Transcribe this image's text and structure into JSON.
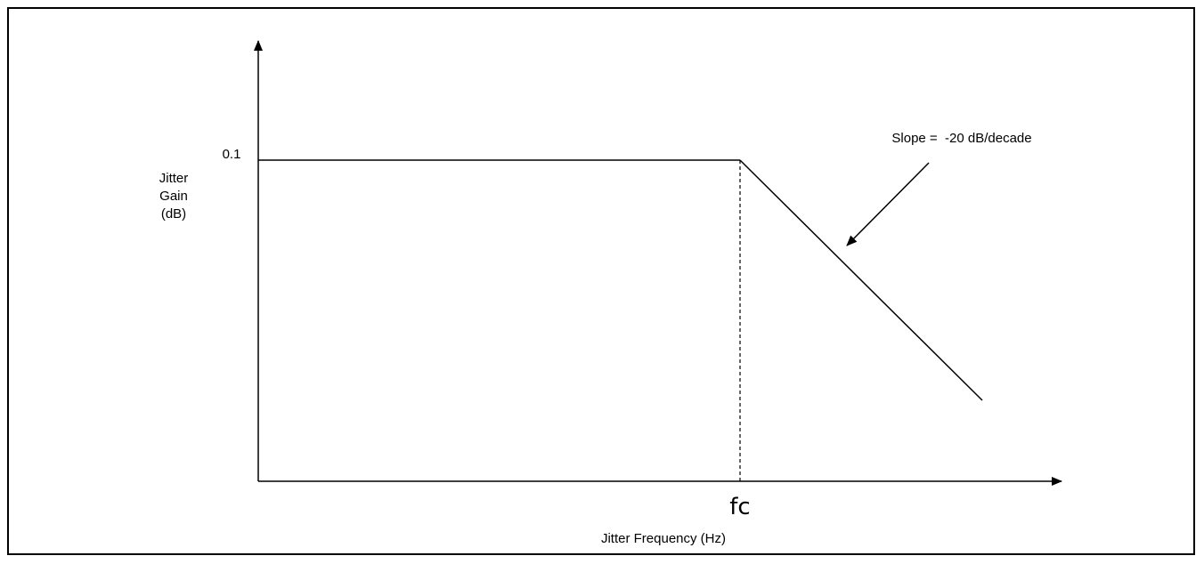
{
  "chart_data": {
    "type": "line",
    "x_scale": "log",
    "ylabel": [
      "Jitter",
      "Gain",
      "(dB)"
    ],
    "xlabel": "Jitter Frequency (Hz)",
    "y_tick_label": "0.1",
    "x_tick_label": "fc",
    "annotation": "Slope =  -20 dB/decade",
    "passband_gain_db": 0.1,
    "rolloff_slope_db_per_decade": -20,
    "grid": false,
    "legend": "none",
    "colors": {
      "line": "#000000",
      "background": "#ffffff"
    }
  }
}
